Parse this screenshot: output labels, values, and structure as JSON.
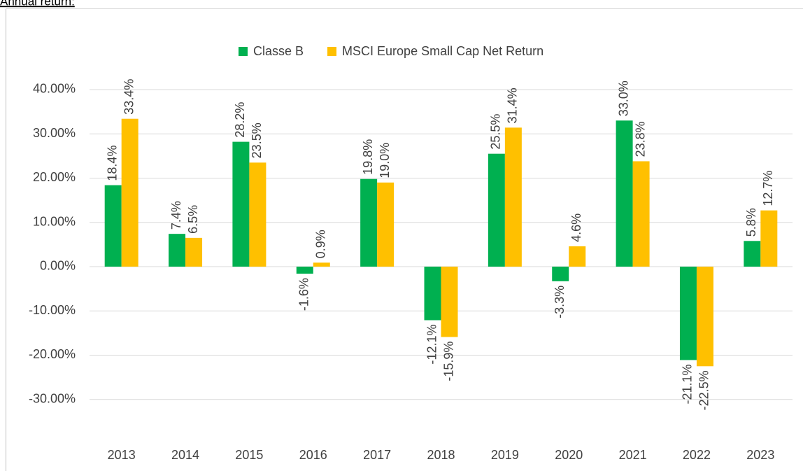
{
  "chart_data": {
    "type": "bar",
    "title": "Annual return:",
    "categories": [
      "2013",
      "2014",
      "2015",
      "2016",
      "2017",
      "2018",
      "2019",
      "2020",
      "2021",
      "2022",
      "2023"
    ],
    "series": [
      {
        "name": "Classe B",
        "color": "#00b050",
        "values": [
          18.4,
          7.4,
          28.2,
          -1.6,
          19.8,
          -12.1,
          25.5,
          -3.3,
          33.0,
          -21.1,
          5.8
        ],
        "value_labels": [
          "18.4%",
          "7.4%",
          "28.2%",
          "-1.6%",
          "19.8%",
          "-12.1%",
          "25.5%",
          "-3.3%",
          "33.0%",
          "-21.1%",
          "5.8%"
        ]
      },
      {
        "name": "MSCI Europe Small Cap Net Return",
        "color": "#ffc000",
        "values": [
          33.4,
          6.5,
          23.5,
          0.9,
          19.0,
          -15.9,
          31.4,
          4.6,
          23.8,
          -22.5,
          12.7
        ],
        "value_labels": [
          "33.4%",
          "6.5%",
          "23.5%",
          "0.9%",
          "19.0%",
          "-15.9%",
          "31.4%",
          "4.6%",
          "23.8%",
          "-22.5%",
          "12.7%"
        ]
      }
    ],
    "ylim": [
      -40,
      50
    ],
    "yticks": [
      {
        "value": -30,
        "label": "-30.00%"
      },
      {
        "value": -20,
        "label": "-20.00%"
      },
      {
        "value": -10,
        "label": "-10.00%"
      },
      {
        "value": 0,
        "label": "0.00%"
      },
      {
        "value": 10,
        "label": "10.00%"
      },
      {
        "value": 20,
        "label": "20.00%"
      },
      {
        "value": 30,
        "label": "30.00%"
      },
      {
        "value": 40,
        "label": "40.00%"
      }
    ],
    "grid": true,
    "legend": "top"
  }
}
